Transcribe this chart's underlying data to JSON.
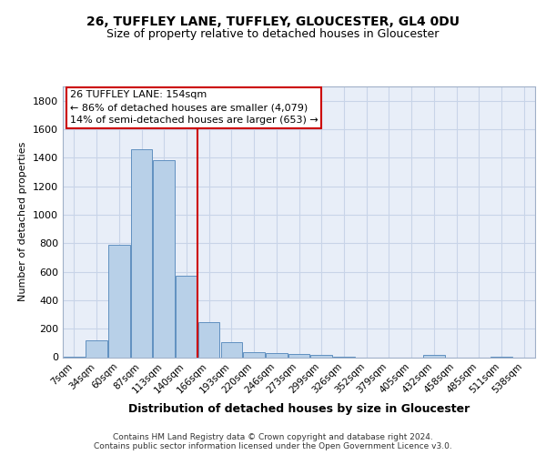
{
  "title1": "26, TUFFLEY LANE, TUFFLEY, GLOUCESTER, GL4 0DU",
  "title2": "Size of property relative to detached houses in Gloucester",
  "xlabel": "Distribution of detached houses by size in Gloucester",
  "ylabel": "Number of detached properties",
  "categories": [
    "7sqm",
    "34sqm",
    "60sqm",
    "87sqm",
    "113sqm",
    "140sqm",
    "166sqm",
    "193sqm",
    "220sqm",
    "246sqm",
    "273sqm",
    "299sqm",
    "326sqm",
    "352sqm",
    "379sqm",
    "405sqm",
    "432sqm",
    "458sqm",
    "485sqm",
    "511sqm",
    "538sqm"
  ],
  "values": [
    5,
    120,
    790,
    1460,
    1380,
    570,
    245,
    105,
    35,
    30,
    20,
    15,
    5,
    0,
    0,
    0,
    15,
    0,
    0,
    5,
    0
  ],
  "bar_color": "#b8d0e8",
  "bar_edge_color": "#6090c0",
  "vline_index": 5.5,
  "vline_color": "#cc0000",
  "ylim": [
    0,
    1900
  ],
  "yticks": [
    0,
    200,
    400,
    600,
    800,
    1000,
    1200,
    1400,
    1600,
    1800
  ],
  "annotation_text": "26 TUFFLEY LANE: 154sqm\n← 86% of detached houses are smaller (4,079)\n14% of semi-detached houses are larger (653) →",
  "annotation_box_facecolor": "#ffffff",
  "annotation_box_edgecolor": "#cc0000",
  "footer1": "Contains HM Land Registry data © Crown copyright and database right 2024.",
  "footer2": "Contains public sector information licensed under the Open Government Licence v3.0.",
  "grid_color": "#c8d4e8",
  "background_color": "#e8eef8",
  "fig_background": "#ffffff",
  "title1_fontsize": 10,
  "title2_fontsize": 9,
  "ylabel_fontsize": 8,
  "xlabel_fontsize": 9,
  "tick_fontsize": 7.5,
  "ytick_fontsize": 8,
  "footer_fontsize": 6.5,
  "ann_fontsize": 8
}
